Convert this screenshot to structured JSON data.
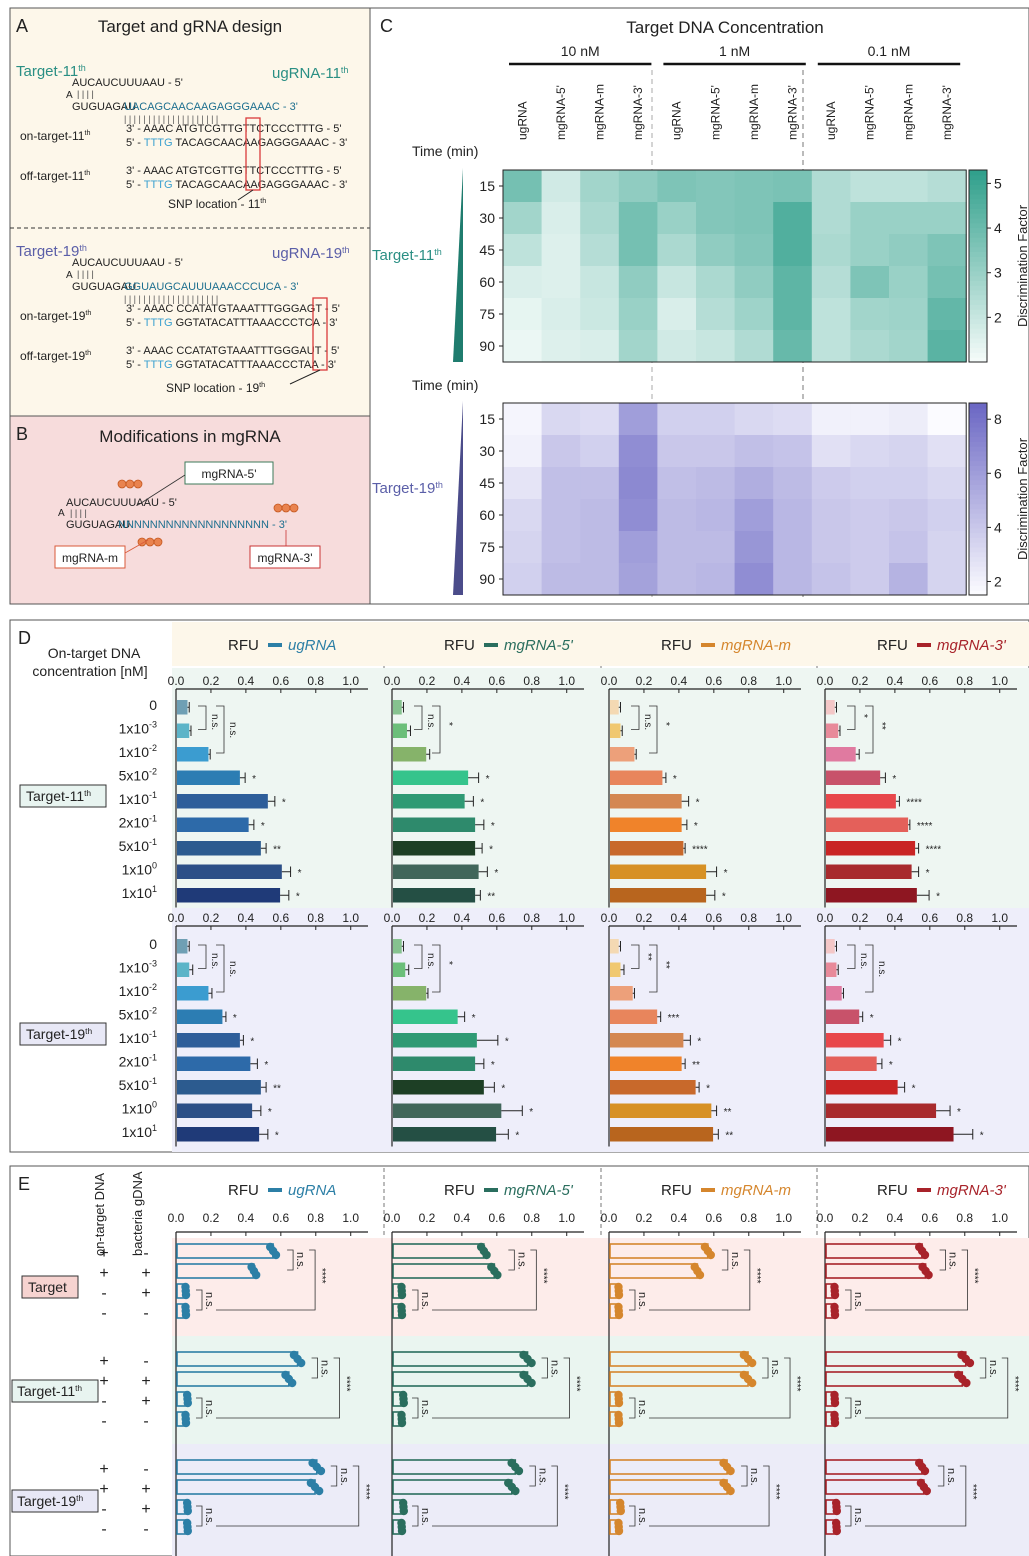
{
  "panelA": {
    "letter": "A",
    "title": "Target and gRNA design",
    "t11": {
      "target": "Target-11th",
      "ugrna": "ugRNA-11th",
      "seq1": "AUCAUCUUUAAU - 5'",
      "seq2a": "GUGUAGAU",
      "seq2b": "UACAGCAACAAGAGGGAAAC - 3'",
      "on_label": "on-target-11th",
      "on1": "3' - AAAC ATGTCGTTGTTCTCCCTTTG - 5'",
      "on2a": "5' - ",
      "on2b": "TTTG",
      "on2c": " TACAGCAACAAGAGGGAAAC - 3'",
      "off_label": "off-target-11th",
      "off1": "3' - AAAC ATGTCGTTGTTCTCCCTTTG - 5'",
      "off2a": "5' - ",
      "off2b": "TTTG",
      "off2c": " TACAGCAACAAGAGGGAAAC - 3'",
      "snp": "SNP location - 11th"
    },
    "t19": {
      "target": "Target-19th",
      "ugrna": "ugRNA-19th",
      "seq1": "AUCAUCUUUAAU - 5'",
      "seq2a": "GUGUAGAU",
      "seq2b": "GGUAUGCAUUUAAACCCUCA - 3'",
      "on_label": "on-target-19th",
      "on1": "3' - AAAC CCATATGTAAATTTGGGAGT - 5'",
      "on2a": "5' - ",
      "on2b": "TTTG",
      "on2c": " GGTATACATTTAAACCCTCA - 3'",
      "off_label": "off-target-19th",
      "off1": "3' - AAAC CCATATGTAAATTTGGGAUT - 5'",
      "off2a": "5' - ",
      "off2b": "TTTG",
      "off2c": " GGTATACATTTAAACCCTAA - 3'",
      "snp": "SNP location - 19th"
    }
  },
  "panelB": {
    "letter": "B",
    "title": "Modifications in mgRNA",
    "seq1": "AUCAUCUUUAAU - 5'",
    "seq2a": "GUGUAGAU",
    "seq2b": "NNNNNNNNNNNNNNNNNNN - 3'",
    "m5": "mgRNA-5'",
    "mm": "mgRNA-m",
    "m3": "mgRNA-3'"
  },
  "panelC": {
    "letter": "C",
    "title": "Target DNA Concentration",
    "time_label": "Time (min)",
    "cbar_label": "Discrimination Factor"
  },
  "panelD": {
    "letter": "D",
    "header": "On-target DNA concentration [nM]",
    "rfu": "RFU",
    "target11": "Target-11th",
    "target19": "Target-19th"
  },
  "panelE": {
    "letter": "E",
    "col1": "on-target DNA",
    "col2": "bacteria gDNA",
    "rfu": "RFU",
    "groups": [
      "Target",
      "Target-11th",
      "Target-19th"
    ],
    "signs": [
      [
        "+",
        "-"
      ],
      [
        "+",
        "+"
      ],
      [
        "-",
        "+"
      ],
      [
        "-",
        "-"
      ]
    ]
  },
  "colors": {
    "ugRNA": "#2c7fa6",
    "mgRNA-5'": "#2a6e5e",
    "mgRNA-m": "#d5862d",
    "mgRNA-3'": "#a8232a",
    "teal": "#3aa795",
    "purple": "#7b72c6",
    "bgA": "#fdf7ea",
    "bgB": "#f7dcdc"
  },
  "chart_data": [
    {
      "type": "heatmap",
      "title": "Target DNA Concentration",
      "row_group": "Target-11th",
      "ylabel": "Time (min)",
      "concentrations": [
        "10 nM",
        "1 nM",
        "0.1 nM"
      ],
      "columns": [
        "ugRNA",
        "mgRNA-5'",
        "mgRNA-m",
        "mgRNA-3'",
        "ugRNA",
        "mgRNA-5'",
        "mgRNA-m",
        "mgRNA-3'",
        "ugRNA",
        "mgRNA-5'",
        "mgRNA-m",
        "mgRNA-3'"
      ],
      "rows": [
        "15",
        "30",
        "45",
        "60",
        "75",
        "90"
      ],
      "values": [
        [
          3.8,
          1.8,
          2.8,
          3.2,
          3.6,
          3.5,
          3.6,
          3.7,
          2.5,
          2.2,
          2.2,
          2.4
        ],
        [
          2.8,
          1.6,
          2.6,
          3.8,
          3.0,
          3.5,
          3.6,
          4.6,
          2.5,
          3.0,
          3.0,
          3.0
        ],
        [
          2.2,
          1.5,
          2.4,
          3.8,
          2.6,
          3.2,
          3.5,
          4.6,
          2.6,
          3.0,
          3.2,
          3.6
        ],
        [
          1.6,
          1.5,
          2.0,
          3.2,
          2.0,
          2.6,
          3.2,
          4.3,
          2.4,
          3.6,
          3.0,
          3.8
        ],
        [
          1.3,
          1.6,
          1.9,
          3.0,
          1.6,
          2.4,
          2.9,
          4.3,
          2.2,
          2.8,
          2.9,
          4.2
        ],
        [
          1.2,
          1.5,
          1.6,
          2.8,
          1.8,
          2.0,
          2.5,
          4.1,
          2.2,
          2.6,
          2.8,
          4.4
        ]
      ],
      "colorbar": {
        "label": "Discrimination Factor",
        "ticks": [
          2,
          3,
          4,
          5
        ],
        "range": [
          1,
          5.3
        ]
      }
    },
    {
      "type": "heatmap",
      "row_group": "Target-19th",
      "ylabel": "Time (min)",
      "columns": [
        "ugRNA",
        "mgRNA-5'",
        "mgRNA-m",
        "mgRNA-3'",
        "ugRNA",
        "mgRNA-5'",
        "mgRNA-m",
        "mgRNA-3'",
        "ugRNA",
        "mgRNA-5'",
        "mgRNA-m",
        "mgRNA-3'"
      ],
      "rows": [
        "15",
        "30",
        "45",
        "60",
        "75",
        "90"
      ],
      "values": [
        [
          1.8,
          3.2,
          3.0,
          6.0,
          3.6,
          3.6,
          3.2,
          3.0,
          2.0,
          2.0,
          2.2,
          1.5
        ],
        [
          2.0,
          4.0,
          3.6,
          6.8,
          4.0,
          4.0,
          4.4,
          4.2,
          2.8,
          3.2,
          3.4,
          2.8
        ],
        [
          2.6,
          4.4,
          4.4,
          7.0,
          4.4,
          4.6,
          5.2,
          4.6,
          3.8,
          3.6,
          3.6,
          3.2
        ],
        [
          3.2,
          4.4,
          4.6,
          6.8,
          4.6,
          4.8,
          6.0,
          4.8,
          4.0,
          3.8,
          4.0,
          3.6
        ],
        [
          3.4,
          4.4,
          4.6,
          6.0,
          4.6,
          4.6,
          6.4,
          4.8,
          4.0,
          3.8,
          4.2,
          3.4
        ],
        [
          3.6,
          4.6,
          4.6,
          5.8,
          4.6,
          4.8,
          6.8,
          4.8,
          4.2,
          3.8,
          5.0,
          3.4
        ]
      ],
      "colorbar": {
        "label": "Discrimination Factor",
        "ticks": [
          2,
          4,
          6,
          8
        ],
        "range": [
          1.5,
          8.6
        ]
      }
    },
    {
      "type": "bar",
      "orientation": "horizontal",
      "xlabel": "RFU",
      "xlim": [
        0,
        1.0
      ],
      "xticks": [
        0.0,
        0.2,
        0.4,
        0.6,
        0.8,
        1.0
      ],
      "categories": [
        "0",
        "1x10-3",
        "1x10-2",
        "5x10-2",
        "1x10-1",
        "2x10-1",
        "5x10-1",
        "1x100",
        "1x101"
      ],
      "groups": [
        {
          "name": "Target-11th",
          "series": [
            {
              "name": "ugRNA",
              "values": [
                0.06,
                0.07,
                0.18,
                0.36,
                0.52,
                0.41,
                0.48,
                0.6,
                0.59
              ],
              "err": [
                0.01,
                0.01,
                0.01,
                0.03,
                0.04,
                0.03,
                0.03,
                0.05,
                0.05
              ],
              "sig": [
                "",
                "n.s.",
                "n.s.",
                "*",
                "*",
                "*",
                "**",
                "*",
                "*"
              ],
              "colors": [
                "#6f9fb4",
                "#5cb4c8",
                "#3b9cd0",
                "#2c7db3",
                "#2e5e9a",
                "#2d6aa9",
                "#2c5b8f",
                "#2c4f87",
                "#1f3a78"
              ]
            },
            {
              "name": "mgRNA-5'",
              "values": [
                0.05,
                0.08,
                0.19,
                0.43,
                0.41,
                0.47,
                0.47,
                0.49,
                0.47
              ],
              "err": [
                0.01,
                0.02,
                0.02,
                0.06,
                0.05,
                0.05,
                0.04,
                0.05,
                0.03
              ],
              "sig": [
                "",
                "n.s.",
                "*",
                "*",
                "*",
                "*",
                "*",
                "*",
                "**"
              ],
              "colors": [
                "#86c28f",
                "#6cbf7a",
                "#86b36a",
                "#35c48c",
                "#2f9a74",
                "#2e8a6c",
                "#1d3f25",
                "#41665a",
                "#244f44"
              ]
            },
            {
              "name": "mgRNA-m",
              "values": [
                0.05,
                0.06,
                0.14,
                0.3,
                0.41,
                0.41,
                0.42,
                0.55,
                0.55
              ],
              "err": [
                0.01,
                0.01,
                0.01,
                0.02,
                0.04,
                0.03,
                0.01,
                0.06,
                0.05
              ],
              "sig": [
                "",
                "n.s.",
                "*",
                "*",
                "*",
                "*",
                "****",
                "*",
                "*"
              ],
              "colors": [
                "#f4d9b3",
                "#f0c870",
                "#eda07a",
                "#e8855c",
                "#d48752",
                "#f0832a",
                "#c8692b",
                "#d79125",
                "#b8651e"
              ]
            },
            {
              "name": "mgRNA-3'",
              "values": [
                0.05,
                0.07,
                0.17,
                0.31,
                0.4,
                0.47,
                0.51,
                0.49,
                0.52
              ],
              "err": [
                0.01,
                0.01,
                0.02,
                0.03,
                0.02,
                0.01,
                0.02,
                0.04,
                0.07
              ],
              "sig": [
                "",
                "*",
                "**",
                "*",
                "****",
                "****",
                "****",
                "*",
                "*"
              ],
              "colors": [
                "#f4c7c7",
                "#e88a9a",
                "#e07aa0",
                "#c8526a",
                "#e8474b",
                "#e4605a",
                "#c92424",
                "#a82a2d",
                "#8e1621"
              ]
            }
          ]
        },
        {
          "name": "Target-19th",
          "series": [
            {
              "name": "ugRNA",
              "values": [
                0.06,
                0.07,
                0.18,
                0.26,
                0.36,
                0.42,
                0.48,
                0.43,
                0.47
              ],
              "err": [
                0.01,
                0.02,
                0.02,
                0.02,
                0.02,
                0.04,
                0.03,
                0.05,
                0.05
              ],
              "sig": [
                "",
                "n.s.",
                "n.s.",
                "*",
                "*",
                "*",
                "**",
                "*",
                "*"
              ],
              "colors": [
                "#6f9fb4",
                "#5cb4c8",
                "#3b9cd0",
                "#2c7db3",
                "#2e5e9a",
                "#2d6aa9",
                "#2c5b8f",
                "#2c4f87",
                "#1f3a78"
              ]
            },
            {
              "name": "mgRNA-5'",
              "values": [
                0.05,
                0.07,
                0.19,
                0.37,
                0.48,
                0.47,
                0.52,
                0.62,
                0.59
              ],
              "err": [
                0.01,
                0.02,
                0.01,
                0.04,
                0.12,
                0.05,
                0.06,
                0.12,
                0.07
              ],
              "sig": [
                "",
                "n.s.",
                "*",
                "*",
                "*",
                "*",
                "*",
                "*",
                "*"
              ],
              "colors": [
                "#86c28f",
                "#6cbf7a",
                "#86b36a",
                "#35c48c",
                "#2f9a74",
                "#2e8a6c",
                "#1d3f25",
                "#41665a",
                "#244f44"
              ]
            },
            {
              "name": "mgRNA-m",
              "values": [
                0.05,
                0.06,
                0.13,
                0.27,
                0.42,
                0.41,
                0.49,
                0.58,
                0.59
              ],
              "err": [
                0.01,
                0.02,
                0.01,
                0.02,
                0.04,
                0.02,
                0.02,
                0.03,
                0.03
              ],
              "sig": [
                "",
                "**",
                "**",
                "***",
                "*",
                "**",
                "*",
                "**",
                "**"
              ],
              "colors": [
                "#f4d9b3",
                "#f0c870",
                "#eda07a",
                "#e8855c",
                "#d48752",
                "#f0832a",
                "#c8692b",
                "#d79125",
                "#b8651e"
              ]
            },
            {
              "name": "mgRNA-3'",
              "values": [
                0.05,
                0.06,
                0.09,
                0.19,
                0.33,
                0.29,
                0.41,
                0.63,
                0.73
              ],
              "err": [
                0.01,
                0.01,
                0.01,
                0.02,
                0.04,
                0.03,
                0.04,
                0.08,
                0.11
              ],
              "sig": [
                "",
                "n.s.",
                "n.s.",
                "*",
                "*",
                "*",
                "*",
                "*",
                "*"
              ],
              "colors": [
                "#f4c7c7",
                "#e88a9a",
                "#e07aa0",
                "#c8526a",
                "#e8474b",
                "#e4605a",
                "#c92424",
                "#a82a2d",
                "#8e1621"
              ]
            }
          ]
        }
      ]
    },
    {
      "type": "bar",
      "orientation": "horizontal",
      "xlabel": "RFU",
      "xlim": [
        0,
        1.0
      ],
      "xticks": [
        0.0,
        0.2,
        0.4,
        0.6,
        0.8,
        1.0
      ],
      "conditions": [
        "on-target DNA + / bacteria gDNA -",
        "on-target DNA + / bacteria gDNA +",
        "on-target DNA - / bacteria gDNA +",
        "on-target DNA - / bacteria gDNA -"
      ],
      "groups": [
        {
          "name": "Target",
          "series": [
            {
              "name": "ugRNA",
              "values": [
                0.55,
                0.44,
                0.05,
                0.05
              ]
            },
            {
              "name": "mgRNA-5'",
              "values": [
                0.52,
                0.58,
                0.05,
                0.05
              ]
            },
            {
              "name": "mgRNA-m",
              "values": [
                0.56,
                0.5,
                0.05,
                0.05
              ]
            },
            {
              "name": "mgRNA-3'",
              "values": [
                0.55,
                0.57,
                0.05,
                0.05
              ]
            }
          ]
        },
        {
          "name": "Target-11th",
          "series": [
            {
              "name": "ugRNA",
              "values": [
                0.69,
                0.64,
                0.06,
                0.05
              ]
            },
            {
              "name": "mgRNA-5'",
              "values": [
                0.77,
                0.77,
                0.06,
                0.05
              ]
            },
            {
              "name": "mgRNA-m",
              "values": [
                0.79,
                0.79,
                0.05,
                0.05
              ]
            },
            {
              "name": "mgRNA-3'",
              "values": [
                0.8,
                0.78,
                0.05,
                0.05
              ]
            }
          ]
        },
        {
          "name": "Target-19th",
          "series": [
            {
              "name": "ugRNA",
              "values": [
                0.8,
                0.79,
                0.06,
                0.06
              ]
            },
            {
              "name": "mgRNA-5'",
              "values": [
                0.7,
                0.68,
                0.06,
                0.05
              ]
            },
            {
              "name": "mgRNA-m",
              "values": [
                0.67,
                0.67,
                0.06,
                0.05
              ]
            },
            {
              "name": "mgRNA-3'",
              "values": [
                0.55,
                0.56,
                0.06,
                0.06
              ]
            }
          ]
        }
      ],
      "significance": {
        "top": "n.s.",
        "bracket": "****",
        "bottom": "n.s."
      }
    }
  ]
}
